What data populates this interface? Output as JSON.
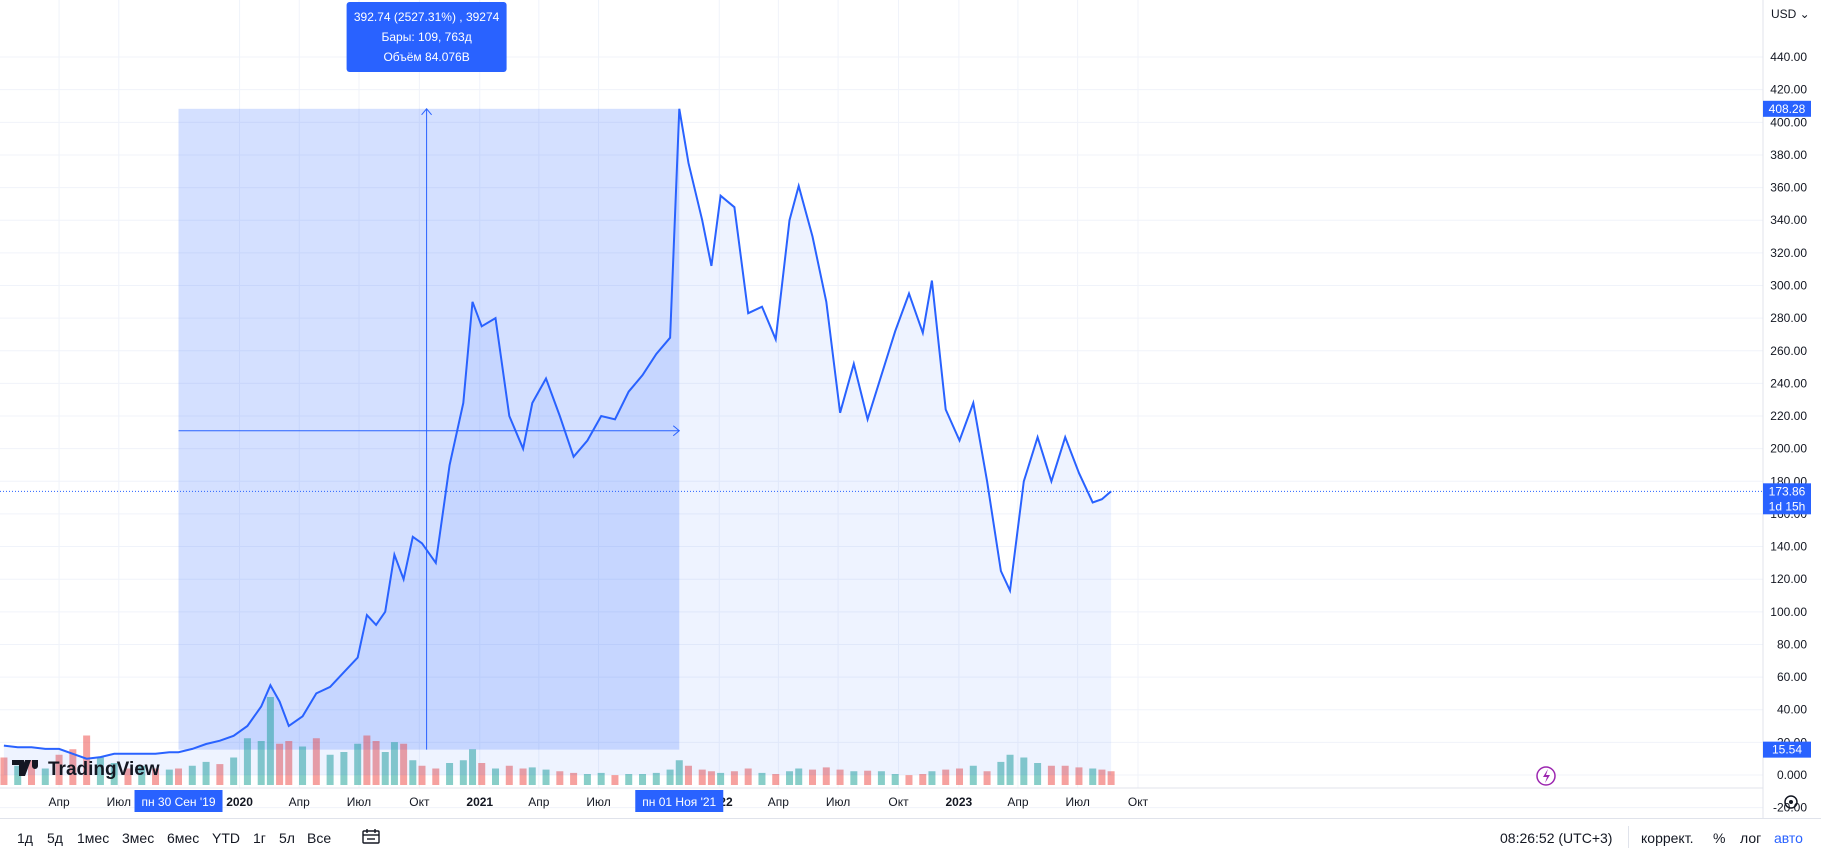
{
  "currency": "USD",
  "chart_data": {
    "type": "line",
    "y_axis": {
      "min": -20,
      "max": 440,
      "ticks": [
        -20,
        0,
        20,
        40,
        60,
        80,
        100,
        120,
        140,
        160,
        180,
        200,
        220,
        240,
        260,
        280,
        300,
        320,
        340,
        360,
        380,
        400,
        420,
        440
      ],
      "tick_labels": [
        "-20.00",
        "0.000",
        "20.00",
        "40.00",
        "60.00",
        "80.00",
        "100.00",
        "120.00",
        "140.00",
        "160.00",
        "180.00",
        "200.00",
        "220.00",
        "240.00",
        "260.00",
        "280.00",
        "300.00",
        "320.00",
        "340.00",
        "360.00",
        "380.00",
        "400.00",
        "420.00",
        "440.00"
      ]
    },
    "x_axis": {
      "tick_labels": [
        "Апр",
        "Июл",
        "2020",
        "Апр",
        "Июл",
        "Окт",
        "2021",
        "Апр",
        "Июл",
        "2022",
        "Апр",
        "Июл",
        "Окт",
        "2023",
        "Апр",
        "Июл",
        "Окт"
      ]
    },
    "price_series": [
      {
        "x": "2019-01-07",
        "y": 18
      },
      {
        "x": "2019-01-28",
        "y": 17
      },
      {
        "x": "2019-02-18",
        "y": 17
      },
      {
        "x": "2019-03-11",
        "y": 16
      },
      {
        "x": "2019-04-01",
        "y": 16
      },
      {
        "x": "2019-04-22",
        "y": 13
      },
      {
        "x": "2019-05-13",
        "y": 10
      },
      {
        "x": "2019-06-03",
        "y": 11
      },
      {
        "x": "2019-06-24",
        "y": 13
      },
      {
        "x": "2019-07-15",
        "y": 13
      },
      {
        "x": "2019-08-05",
        "y": 13
      },
      {
        "x": "2019-08-26",
        "y": 13
      },
      {
        "x": "2019-09-16",
        "y": 14
      },
      {
        "x": "2019-09-30",
        "y": 14
      },
      {
        "x": "2019-10-21",
        "y": 16
      },
      {
        "x": "2019-11-11",
        "y": 19
      },
      {
        "x": "2019-12-02",
        "y": 21
      },
      {
        "x": "2019-12-23",
        "y": 24
      },
      {
        "x": "2020-01-13",
        "y": 30
      },
      {
        "x": "2020-02-03",
        "y": 42
      },
      {
        "x": "2020-02-17",
        "y": 55
      },
      {
        "x": "2020-03-02",
        "y": 45
      },
      {
        "x": "2020-03-16",
        "y": 30
      },
      {
        "x": "2020-04-06",
        "y": 36
      },
      {
        "x": "2020-04-27",
        "y": 50
      },
      {
        "x": "2020-05-18",
        "y": 54
      },
      {
        "x": "2020-06-08",
        "y": 63
      },
      {
        "x": "2020-06-29",
        "y": 72
      },
      {
        "x": "2020-07-13",
        "y": 98
      },
      {
        "x": "2020-07-27",
        "y": 92
      },
      {
        "x": "2020-08-10",
        "y": 100
      },
      {
        "x": "2020-08-24",
        "y": 135
      },
      {
        "x": "2020-09-07",
        "y": 120
      },
      {
        "x": "2020-09-21",
        "y": 146
      },
      {
        "x": "2020-10-05",
        "y": 142
      },
      {
        "x": "2020-10-26",
        "y": 130
      },
      {
        "x": "2020-11-16",
        "y": 190
      },
      {
        "x": "2020-12-07",
        "y": 228
      },
      {
        "x": "2020-12-21",
        "y": 290
      },
      {
        "x": "2021-01-04",
        "y": 275
      },
      {
        "x": "2021-01-25",
        "y": 280
      },
      {
        "x": "2021-02-15",
        "y": 220
      },
      {
        "x": "2021-03-08",
        "y": 200
      },
      {
        "x": "2021-03-22",
        "y": 228
      },
      {
        "x": "2021-04-12",
        "y": 243
      },
      {
        "x": "2021-05-03",
        "y": 220
      },
      {
        "x": "2021-05-24",
        "y": 195
      },
      {
        "x": "2021-06-14",
        "y": 205
      },
      {
        "x": "2021-07-05",
        "y": 220
      },
      {
        "x": "2021-07-26",
        "y": 218
      },
      {
        "x": "2021-08-16",
        "y": 235
      },
      {
        "x": "2021-09-06",
        "y": 245
      },
      {
        "x": "2021-09-27",
        "y": 258
      },
      {
        "x": "2021-10-18",
        "y": 268
      },
      {
        "x": "2021-11-01",
        "y": 408.28
      },
      {
        "x": "2021-11-15",
        "y": 375
      },
      {
        "x": "2021-12-06",
        "y": 340
      },
      {
        "x": "2021-12-20",
        "y": 312
      },
      {
        "x": "2022-01-03",
        "y": 355
      },
      {
        "x": "2022-01-24",
        "y": 348
      },
      {
        "x": "2022-02-14",
        "y": 283
      },
      {
        "x": "2022-03-07",
        "y": 287
      },
      {
        "x": "2022-03-28",
        "y": 267
      },
      {
        "x": "2022-04-18",
        "y": 340
      },
      {
        "x": "2022-05-02",
        "y": 361
      },
      {
        "x": "2022-05-23",
        "y": 330
      },
      {
        "x": "2022-06-13",
        "y": 290
      },
      {
        "x": "2022-07-04",
        "y": 222
      },
      {
        "x": "2022-07-25",
        "y": 252
      },
      {
        "x": "2022-08-15",
        "y": 218
      },
      {
        "x": "2022-09-05",
        "y": 245
      },
      {
        "x": "2022-09-26",
        "y": 272
      },
      {
        "x": "2022-10-17",
        "y": 295
      },
      {
        "x": "2022-11-07",
        "y": 271
      },
      {
        "x": "2022-11-21",
        "y": 303
      },
      {
        "x": "2022-12-12",
        "y": 224
      },
      {
        "x": "2023-01-02",
        "y": 205
      },
      {
        "x": "2023-01-23",
        "y": 228
      },
      {
        "x": "2023-02-13",
        "y": 180
      },
      {
        "x": "2023-03-06",
        "y": 125
      },
      {
        "x": "2023-03-20",
        "y": 113
      },
      {
        "x": "2023-04-10",
        "y": 180
      },
      {
        "x": "2023-05-01",
        "y": 207
      },
      {
        "x": "2023-05-22",
        "y": 180
      },
      {
        "x": "2023-06-12",
        "y": 207
      },
      {
        "x": "2023-07-03",
        "y": 185
      },
      {
        "x": "2023-07-24",
        "y": 167
      },
      {
        "x": "2023-08-07",
        "y": 169
      },
      {
        "x": "2023-08-21",
        "y": 173.86
      }
    ],
    "volume_bars": [
      {
        "x": "2019-01-07",
        "v": 0.5,
        "up": false
      },
      {
        "x": "2019-01-28",
        "v": 0.35,
        "up": true
      },
      {
        "x": "2019-02-18",
        "v": 0.45,
        "up": false
      },
      {
        "x": "2019-03-11",
        "v": 0.3,
        "up": true
      },
      {
        "x": "2019-04-01",
        "v": 0.55,
        "up": false
      },
      {
        "x": "2019-04-22",
        "v": 0.65,
        "up": false
      },
      {
        "x": "2019-05-13",
        "v": 0.9,
        "up": false
      },
      {
        "x": "2019-06-03",
        "v": 0.5,
        "up": true
      },
      {
        "x": "2019-06-24",
        "v": 0.4,
        "up": true
      },
      {
        "x": "2019-07-15",
        "v": 0.3,
        "up": false
      },
      {
        "x": "2019-08-05",
        "v": 0.35,
        "up": true
      },
      {
        "x": "2019-08-26",
        "v": 0.3,
        "up": false
      },
      {
        "x": "2019-09-16",
        "v": 0.28,
        "up": true
      },
      {
        "x": "2019-09-30",
        "v": 0.3,
        "up": false
      },
      {
        "x": "2019-10-21",
        "v": 0.35,
        "up": true
      },
      {
        "x": "2019-11-11",
        "v": 0.42,
        "up": true
      },
      {
        "x": "2019-12-02",
        "v": 0.38,
        "up": false
      },
      {
        "x": "2019-12-23",
        "v": 0.5,
        "up": true
      },
      {
        "x": "2020-01-13",
        "v": 0.85,
        "up": true
      },
      {
        "x": "2020-02-03",
        "v": 0.8,
        "up": true
      },
      {
        "x": "2020-02-17",
        "v": 1.6,
        "up": true
      },
      {
        "x": "2020-03-02",
        "v": 0.75,
        "up": false
      },
      {
        "x": "2020-03-16",
        "v": 0.8,
        "up": false
      },
      {
        "x": "2020-04-06",
        "v": 0.7,
        "up": true
      },
      {
        "x": "2020-04-27",
        "v": 0.85,
        "up": false
      },
      {
        "x": "2020-05-18",
        "v": 0.55,
        "up": true
      },
      {
        "x": "2020-06-08",
        "v": 0.6,
        "up": true
      },
      {
        "x": "2020-06-29",
        "v": 0.75,
        "up": true
      },
      {
        "x": "2020-07-13",
        "v": 0.9,
        "up": false
      },
      {
        "x": "2020-07-27",
        "v": 0.8,
        "up": false
      },
      {
        "x": "2020-08-10",
        "v": 0.6,
        "up": true
      },
      {
        "x": "2020-08-24",
        "v": 0.78,
        "up": true
      },
      {
        "x": "2020-09-07",
        "v": 0.75,
        "up": false
      },
      {
        "x": "2020-09-21",
        "v": 0.45,
        "up": true
      },
      {
        "x": "2020-10-05",
        "v": 0.35,
        "up": false
      },
      {
        "x": "2020-10-26",
        "v": 0.3,
        "up": false
      },
      {
        "x": "2020-11-16",
        "v": 0.4,
        "up": true
      },
      {
        "x": "2020-12-07",
        "v": 0.45,
        "up": true
      },
      {
        "x": "2020-12-21",
        "v": 0.65,
        "up": true
      },
      {
        "x": "2021-01-04",
        "v": 0.4,
        "up": false
      },
      {
        "x": "2021-01-25",
        "v": 0.3,
        "up": true
      },
      {
        "x": "2021-02-15",
        "v": 0.35,
        "up": false
      },
      {
        "x": "2021-03-08",
        "v": 0.3,
        "up": false
      },
      {
        "x": "2021-03-22",
        "v": 0.32,
        "up": true
      },
      {
        "x": "2021-04-12",
        "v": 0.28,
        "up": true
      },
      {
        "x": "2021-05-03",
        "v": 0.25,
        "up": false
      },
      {
        "x": "2021-05-24",
        "v": 0.22,
        "up": false
      },
      {
        "x": "2021-06-14",
        "v": 0.2,
        "up": true
      },
      {
        "x": "2021-07-05",
        "v": 0.22,
        "up": true
      },
      {
        "x": "2021-07-26",
        "v": 0.18,
        "up": false
      },
      {
        "x": "2021-08-16",
        "v": 0.2,
        "up": true
      },
      {
        "x": "2021-09-06",
        "v": 0.2,
        "up": true
      },
      {
        "x": "2021-09-27",
        "v": 0.22,
        "up": true
      },
      {
        "x": "2021-10-18",
        "v": 0.28,
        "up": true
      },
      {
        "x": "2021-11-01",
        "v": 0.45,
        "up": true
      },
      {
        "x": "2021-11-15",
        "v": 0.35,
        "up": false
      },
      {
        "x": "2021-12-06",
        "v": 0.28,
        "up": false
      },
      {
        "x": "2021-12-20",
        "v": 0.25,
        "up": false
      },
      {
        "x": "2022-01-03",
        "v": 0.22,
        "up": true
      },
      {
        "x": "2022-01-24",
        "v": 0.25,
        "up": false
      },
      {
        "x": "2022-02-14",
        "v": 0.3,
        "up": false
      },
      {
        "x": "2022-03-07",
        "v": 0.22,
        "up": true
      },
      {
        "x": "2022-03-28",
        "v": 0.2,
        "up": false
      },
      {
        "x": "2022-04-18",
        "v": 0.25,
        "up": true
      },
      {
        "x": "2022-05-02",
        "v": 0.3,
        "up": true
      },
      {
        "x": "2022-05-23",
        "v": 0.28,
        "up": false
      },
      {
        "x": "2022-06-13",
        "v": 0.32,
        "up": false
      },
      {
        "x": "2022-07-04",
        "v": 0.28,
        "up": false
      },
      {
        "x": "2022-07-25",
        "v": 0.25,
        "up": true
      },
      {
        "x": "2022-08-15",
        "v": 0.26,
        "up": false
      },
      {
        "x": "2022-09-05",
        "v": 0.25,
        "up": true
      },
      {
        "x": "2022-09-26",
        "v": 0.2,
        "up": true
      },
      {
        "x": "2022-10-17",
        "v": 0.18,
        "up": false
      },
      {
        "x": "2022-11-07",
        "v": 0.2,
        "up": false
      },
      {
        "x": "2022-11-21",
        "v": 0.25,
        "up": true
      },
      {
        "x": "2022-12-12",
        "v": 0.28,
        "up": false
      },
      {
        "x": "2023-01-02",
        "v": 0.3,
        "up": false
      },
      {
        "x": "2023-01-23",
        "v": 0.35,
        "up": true
      },
      {
        "x": "2023-02-13",
        "v": 0.25,
        "up": false
      },
      {
        "x": "2023-03-06",
        "v": 0.42,
        "up": true
      },
      {
        "x": "2023-03-20",
        "v": 0.55,
        "up": true
      },
      {
        "x": "2023-04-10",
        "v": 0.5,
        "up": true
      },
      {
        "x": "2023-05-01",
        "v": 0.4,
        "up": true
      },
      {
        "x": "2023-05-22",
        "v": 0.35,
        "up": false
      },
      {
        "x": "2023-06-12",
        "v": 0.35,
        "up": false
      },
      {
        "x": "2023-07-03",
        "v": 0.32,
        "up": false
      },
      {
        "x": "2023-07-24",
        "v": 0.3,
        "up": true
      },
      {
        "x": "2023-08-07",
        "v": 0.28,
        "up": false
      },
      {
        "x": "2023-08-21",
        "v": 0.25,
        "up": false
      }
    ],
    "measure_tooltip": {
      "line1": "392.74 (2527.31%) , 39274",
      "line2": "Бары: 109, 763д",
      "line3": "Объём 84.076B"
    },
    "measure_range": {
      "x_start": "2019-09-30",
      "x_end": "2021-11-01",
      "y_low": 15.54,
      "y_high": 408.28
    },
    "crosshair": {
      "x": "2020-10-12",
      "y": 211
    },
    "date_labels": {
      "start": "пн 30 Сен '19",
      "end": "пн 01 Ноя '21"
    },
    "price_labels": {
      "high": "408.28",
      "current": "173.86",
      "countdown": "1d 15h",
      "low": "15.54"
    },
    "current_price": 173.86,
    "colors": {
      "line": "#2962ff",
      "up": "#26a69a",
      "down": "#ef5350",
      "label_bg": "#2962ff"
    }
  },
  "logo": {
    "text": "TradingView"
  },
  "bottom_bar": {
    "ranges": [
      "1д",
      "5д",
      "1мес",
      "3мес",
      "6мес",
      "YTD",
      "1г",
      "5л",
      "Все"
    ],
    "time": "08:26:52 (UTC+3)",
    "adjust": "коррект.",
    "percent": "%",
    "log": "лог",
    "auto": "авто"
  }
}
